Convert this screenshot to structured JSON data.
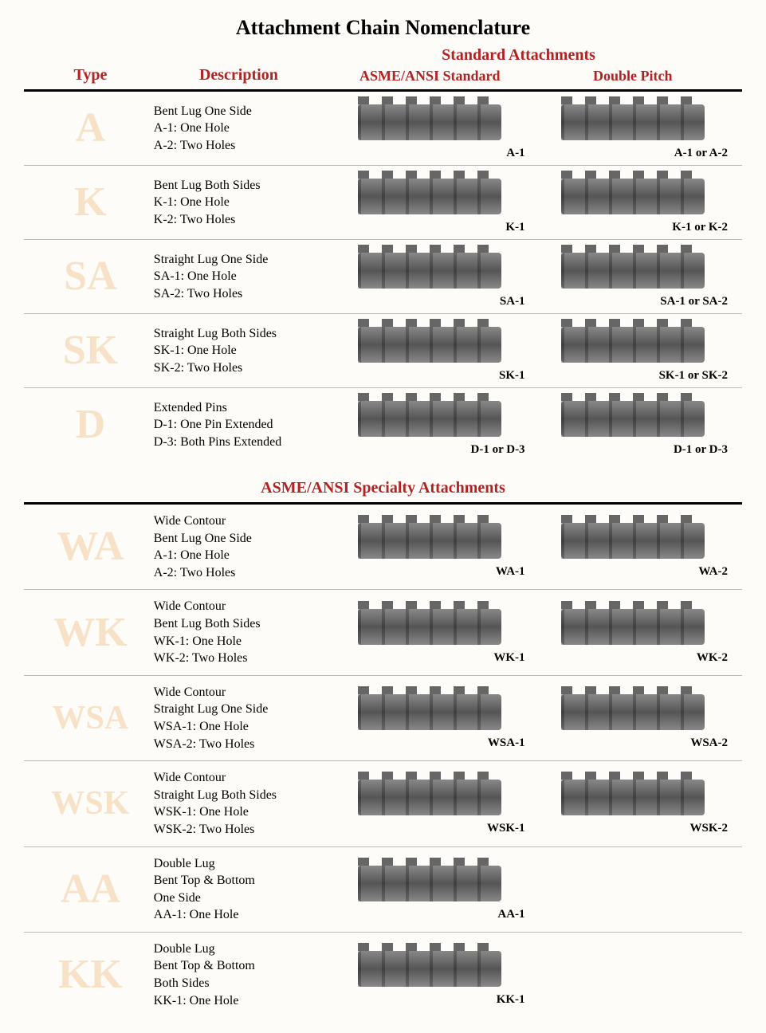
{
  "title": "Attachment Chain Nomenclature",
  "colors": {
    "header_red": "#b22222",
    "type_letter": "#f7e2c8",
    "rule": "#000000",
    "row_divider": "#bbbbbb",
    "background": "#fdfcf8",
    "chain_gray_light": "#888888",
    "chain_gray_dark": "#555555"
  },
  "typography": {
    "title_fontsize": 26,
    "header_fontsize": 20,
    "type_letter_fontsize": 52,
    "type_letter_fontsize_small": 42,
    "body_fontsize": 16,
    "label_fontsize": 15,
    "font_family": "Times New Roman"
  },
  "headers": {
    "super": "Standard Attachments",
    "type": "Type",
    "description": "Description",
    "asme": "ASME/ANSI Standard",
    "double_pitch": "Double Pitch"
  },
  "section1": {
    "rows": [
      {
        "type": "A",
        "desc_lines": [
          "Bent Lug One Side",
          "A-1: One Hole",
          "A-2: Two Holes"
        ],
        "label_left": "A-1",
        "label_right": "A-1 or A-2"
      },
      {
        "type": "K",
        "desc_lines": [
          "Bent Lug Both Sides",
          "K-1: One Hole",
          "K-2: Two Holes"
        ],
        "label_left": "K-1",
        "label_right": "K-1 or K-2"
      },
      {
        "type": "SA",
        "desc_lines": [
          "Straight Lug One Side",
          "SA-1: One Hole",
          "SA-2: Two Holes"
        ],
        "label_left": "SA-1",
        "label_right": "SA-1 or SA-2"
      },
      {
        "type": "SK",
        "desc_lines": [
          "Straight Lug Both Sides",
          "SK-1: One Hole",
          "SK-2: Two Holes"
        ],
        "label_left": "SK-1",
        "label_right": "SK-1 or SK-2"
      },
      {
        "type": "D",
        "desc_lines": [
          "Extended Pins",
          "D-1: One Pin Extended",
          "D-3: Both Pins Extended"
        ],
        "label_left": "D-1 or D-3",
        "label_right": "D-1 or D-3"
      }
    ]
  },
  "section2": {
    "title": "ASME/ANSI Specialty Attachments",
    "rows": [
      {
        "type": "WA",
        "desc_lines": [
          "Wide Contour",
          "Bent Lug One Side",
          "A-1: One Hole",
          "A-2: Two Holes"
        ],
        "label_left": "WA-1",
        "label_right": "WA-2"
      },
      {
        "type": "WK",
        "desc_lines": [
          "Wide Contour",
          "Bent Lug Both Sides",
          "WK-1: One Hole",
          "WK-2: Two Holes"
        ],
        "label_left": "WK-1",
        "label_right": "WK-2"
      },
      {
        "type": "WSA",
        "desc_lines": [
          "Wide Contour",
          "Straight Lug One Side",
          "WSA-1: One Hole",
          "WSA-2: Two Holes"
        ],
        "label_left": "WSA-1",
        "label_right": "WSA-2"
      },
      {
        "type": "WSK",
        "desc_lines": [
          "Wide Contour",
          "Straight Lug Both Sides",
          "WSK-1: One Hole",
          "WSK-2: Two Holes"
        ],
        "label_left": "WSK-1",
        "label_right": "WSK-2"
      },
      {
        "type": "AA",
        "desc_lines": [
          "Double Lug",
          "Bent Top & Bottom",
          "One Side",
          "AA-1: One Hole"
        ],
        "label_left": "AA-1",
        "label_right": ""
      },
      {
        "type": "KK",
        "desc_lines": [
          "Double Lug",
          "Bent Top & Bottom",
          "Both Sides",
          "KK-1: One Hole"
        ],
        "label_left": "KK-1",
        "label_right": ""
      }
    ]
  }
}
